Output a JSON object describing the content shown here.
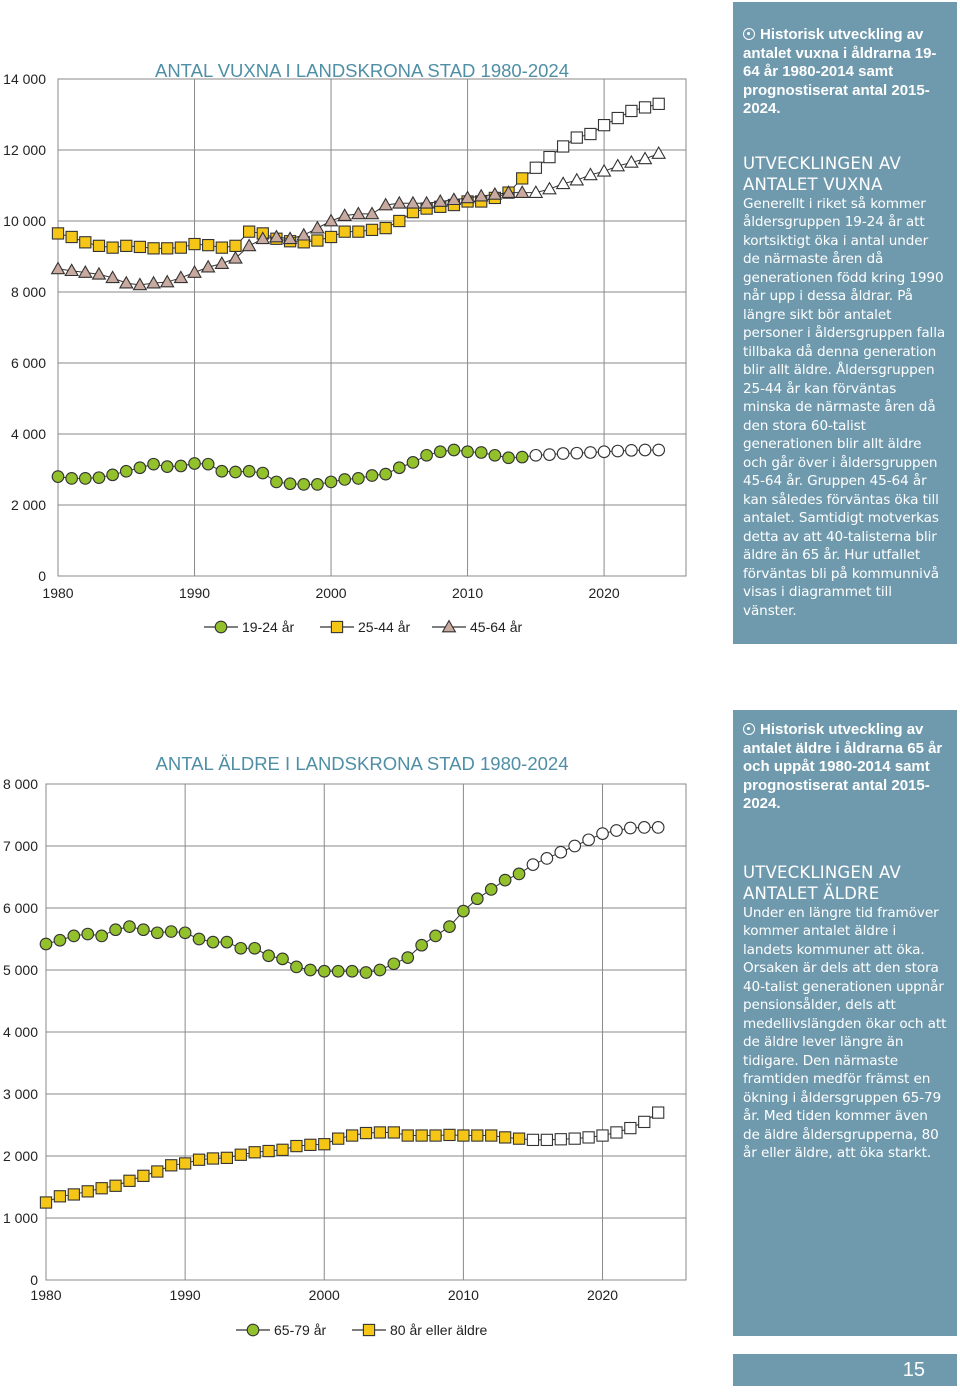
{
  "colors": {
    "sidebar": "#6f9aad",
    "title": "#4f8fa6",
    "green": "#93c12b",
    "yellow": "#f5c615",
    "taupe": "#c9aaa0",
    "open": "#ffffff"
  },
  "chart_data": [
    {
      "type": "line",
      "title": "ANTAL VUXNA I LANDSKRONA STAD 1980-2024",
      "x": [
        1980,
        1981,
        1982,
        1983,
        1984,
        1985,
        1986,
        1987,
        1988,
        1989,
        1990,
        1991,
        1992,
        1993,
        1994,
        1995,
        1996,
        1997,
        1998,
        1999,
        2000,
        2001,
        2002,
        2003,
        2004,
        2005,
        2006,
        2007,
        2008,
        2009,
        2010,
        2011,
        2012,
        2013,
        2014,
        2015,
        2016,
        2017,
        2018,
        2019,
        2020,
        2021,
        2022,
        2023,
        2024
      ],
      "xticks": [
        "1980",
        "1990",
        "2000",
        "2010",
        "2020"
      ],
      "ylim": [
        0,
        14000
      ],
      "yticks": [
        "0",
        "2 000",
        "4 000",
        "6 000",
        "8 000",
        "10 000",
        "12 000",
        "14 000"
      ],
      "xlabel": "",
      "ylabel": "",
      "historic_until": 2014,
      "series": [
        {
          "name": "19-24 år",
          "marker": "circle",
          "color": "#93c12b",
          "values": [
            2800,
            2750,
            2750,
            2770,
            2850,
            2950,
            3050,
            3150,
            3080,
            3100,
            3170,
            3150,
            2950,
            2930,
            2950,
            2900,
            2650,
            2600,
            2580,
            2580,
            2650,
            2720,
            2750,
            2830,
            2870,
            3050,
            3200,
            3400,
            3500,
            3550,
            3500,
            3480,
            3400,
            3330,
            3350,
            3400,
            3420,
            3450,
            3460,
            3480,
            3500,
            3520,
            3540,
            3550,
            3550
          ]
        },
        {
          "name": "25-44 år",
          "marker": "square",
          "color": "#f5c615",
          "values": [
            9650,
            9550,
            9400,
            9300,
            9250,
            9300,
            9270,
            9230,
            9230,
            9250,
            9350,
            9320,
            9250,
            9300,
            9700,
            9650,
            9500,
            9430,
            9400,
            9450,
            9550,
            9700,
            9700,
            9750,
            9800,
            10000,
            10250,
            10350,
            10400,
            10450,
            10550,
            10550,
            10650,
            10800,
            11200,
            11500,
            11800,
            12100,
            12350,
            12450,
            12700,
            12900,
            13100,
            13200,
            13300
          ]
        },
        {
          "name": "45-64 år",
          "marker": "triangle",
          "color": "#c9aaa0",
          "values": [
            8650,
            8600,
            8550,
            8500,
            8400,
            8250,
            8200,
            8250,
            8280,
            8400,
            8550,
            8700,
            8800,
            8950,
            9300,
            9500,
            9550,
            9500,
            9600,
            9800,
            10000,
            10150,
            10200,
            10200,
            10450,
            10500,
            10500,
            10500,
            10550,
            10600,
            10650,
            10700,
            10750,
            10800,
            10800,
            10800,
            10900,
            11050,
            11150,
            11300,
            11400,
            11550,
            11650,
            11750,
            11900
          ]
        }
      ],
      "legend": "bottom"
    },
    {
      "type": "line",
      "title": "ANTAL ÄLDRE I LANDSKRONA STAD 1980-2024",
      "x": [
        1980,
        1981,
        1982,
        1983,
        1984,
        1985,
        1986,
        1987,
        1988,
        1989,
        1990,
        1991,
        1992,
        1993,
        1994,
        1995,
        1996,
        1997,
        1998,
        1999,
        2000,
        2001,
        2002,
        2003,
        2004,
        2005,
        2006,
        2007,
        2008,
        2009,
        2010,
        2011,
        2012,
        2013,
        2014,
        2015,
        2016,
        2017,
        2018,
        2019,
        2020,
        2021,
        2022,
        2023,
        2024
      ],
      "xticks": [
        "1980",
        "1990",
        "2000",
        "2010",
        "2020"
      ],
      "ylim": [
        0,
        8000
      ],
      "yticks": [
        "0",
        "1 000",
        "2 000",
        "3 000",
        "4 000",
        "5 000",
        "6 000",
        "7 000",
        "8 000"
      ],
      "xlabel": "",
      "ylabel": "",
      "historic_until": 2014,
      "series": [
        {
          "name": "65-79 år",
          "marker": "circle",
          "color": "#93c12b",
          "values": [
            5420,
            5480,
            5550,
            5580,
            5550,
            5650,
            5700,
            5650,
            5600,
            5620,
            5600,
            5500,
            5450,
            5450,
            5350,
            5350,
            5230,
            5180,
            5050,
            5000,
            4980,
            4980,
            4980,
            4960,
            5000,
            5100,
            5200,
            5400,
            5550,
            5700,
            5950,
            6150,
            6300,
            6450,
            6550,
            6700,
            6800,
            6900,
            7000,
            7100,
            7200,
            7250,
            7290,
            7300,
            7300
          ]
        },
        {
          "name": "80 år eller äldre",
          "marker": "square",
          "color": "#f5c615",
          "values": [
            1250,
            1350,
            1380,
            1430,
            1480,
            1520,
            1600,
            1680,
            1750,
            1850,
            1880,
            1940,
            1960,
            1970,
            2020,
            2060,
            2080,
            2100,
            2160,
            2180,
            2190,
            2280,
            2330,
            2370,
            2380,
            2380,
            2330,
            2330,
            2330,
            2340,
            2330,
            2330,
            2330,
            2300,
            2280,
            2260,
            2260,
            2270,
            2280,
            2300,
            2330,
            2380,
            2450,
            2550,
            2700
          ]
        }
      ],
      "legend": "bottom"
    }
  ],
  "sidebar1": {
    "intro": "Historisk utveckling av antalet vuxna i åldrarna 19-64 år 1980-2014 samt prognostiserat antal 2015-2024.",
    "heading": "UTVECKLINGEN AV ANTALET VUXNA",
    "body": "Generellt i riket så kommer åldersgruppen 19-24 år att kortsiktigt öka i antal under de närmaste åren då generationen född kring 1990 når upp i dessa åldrar. På längre sikt bör antalet personer i åldersgruppen falla tillbaka då denna generation blir allt äldre. Åldersgruppen 25-44 år kan förväntas minska de närmaste åren då den stora 60-talist generationen blir allt äldre och går över i åldersgruppen 45-64 år. Gruppen 45-64 år kan således förväntas öka till antalet. Samtidigt motverkas detta av att 40-talisterna blir äldre än 65 år. Hur utfallet förväntas bli på kommunnivå visas i diagrammet till vänster."
  },
  "sidebar2": {
    "intro": "Historisk utveckling av antalet äldre i åldrarna 65 år och uppåt 1980-2014 samt prognostiserat antal 2015-2024.",
    "heading": "UTVECKLINGEN AV ANTALET ÄLDRE",
    "body": "Under en längre tid framöver kommer antalet äldre i landets kommuner att öka. Orsaken är dels att den stora 40-talist generationen uppnår pensionsålder, dels att medellivslängden ökar och att de äldre lever längre än tidigare. Den närmaste framtiden medför främst en ökning i åldersgruppen 65-79 år. Med tiden kommer även de äldre åldersgrupperna, 80 år eller äldre, att öka starkt."
  },
  "page_number": "15"
}
